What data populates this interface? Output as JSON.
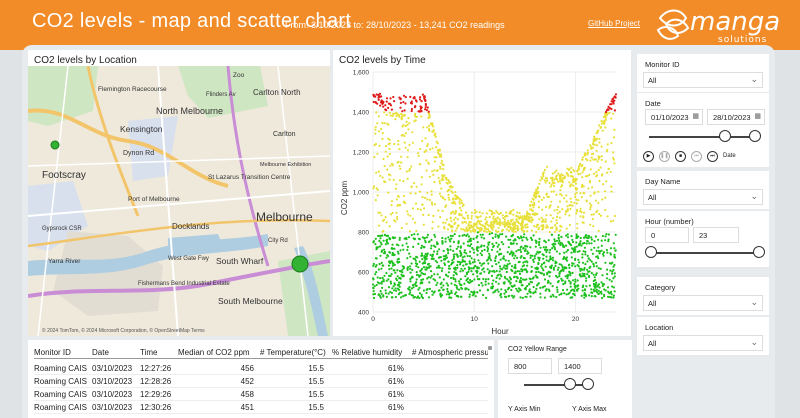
{
  "header": {
    "title": "CO2 levels - map and scatter chart",
    "subtitle": "From: 3/10/2023 to: 28/10/2023 - 13,241 CO2 readings",
    "github_link": "GitHub Project",
    "logo_text": "manga",
    "logo_subtext": "solutions",
    "bg_color": "#f28c28"
  },
  "map": {
    "title": "CO2 levels by Location",
    "labels": [
      "Flemington Racecourse",
      "North Melbourne",
      "Carlton North",
      "Kensington",
      "Zoo",
      "Footscray",
      "Dynon Rd",
      "Port of Melbourne",
      "St Lazarus Transition Centre",
      "Melbourne",
      "Docklands",
      "Gypsrock CSR",
      "Yarra River",
      "West Gate Fwy",
      "South Wharf",
      "Fishermans Bend Industrial Estate",
      "South Melbourne",
      "Carlton",
      "Flinders Av",
      "City Rd",
      "Melbourne Exhibition"
    ],
    "copyright": "© 2024 TomTom, © 2024 Microsoft Corporation, © OpenStreetMap  Terms",
    "markers": [
      {
        "lat": -37.799,
        "lon": 144.91,
        "color": "#33b233"
      },
      {
        "lat": -37.833,
        "lon": 144.962,
        "color": "#33b233"
      }
    ]
  },
  "scatter": {
    "title": "CO2 levels by Time",
    "ylabel": "CO2 ppm",
    "xlabel": "Hour"
  },
  "chart_data": {
    "type": "scatter",
    "title": "CO2 levels by Time",
    "xlabel": "Hour",
    "ylabel": "CO2 ppm",
    "xlim": [
      0,
      24
    ],
    "ylim": [
      400,
      1600
    ],
    "x_ticks": [
      0,
      10,
      20
    ],
    "y_ticks": [
      400,
      600,
      800,
      1000,
      1200,
      1400,
      1600
    ],
    "grid": true,
    "color_bands": [
      {
        "min": 400,
        "max": 800,
        "color": "#1ec01e"
      },
      {
        "min": 800,
        "max": 1400,
        "color": "#e8e03a"
      },
      {
        "min": 1400,
        "max": 1600,
        "color": "#e01a1a"
      }
    ]
  },
  "table": {
    "columns": [
      "Monitor ID",
      "Date",
      "Time",
      "Median of CO2 ppm",
      "# Temperature(°C)",
      "% Relative humidity",
      "# Atmospheric pressur"
    ],
    "rows": [
      [
        "Roaming CAIS",
        "03/10/2023",
        "12:27:26",
        "456",
        "15.5",
        "61%",
        ""
      ],
      [
        "Roaming CAIS",
        "03/10/2023",
        "12:28:26",
        "452",
        "15.5",
        "61%",
        ""
      ],
      [
        "Roaming CAIS",
        "03/10/2023",
        "12:29:26",
        "458",
        "15.5",
        "61%",
        ""
      ],
      [
        "Roaming CAIS",
        "03/10/2023",
        "12:30:26",
        "451",
        "15.5",
        "61%",
        ""
      ]
    ]
  },
  "yellow_range": {
    "title": "CO2 Yellow Range",
    "min": "800",
    "max": "1400",
    "y_axis_min_label": "Y Axis Min",
    "y_axis_max_label": "Y Axis Max"
  },
  "slicers": {
    "monitor": {
      "label": "Monitor ID",
      "value": "All"
    },
    "date": {
      "label": "Date",
      "from": "01/10/2023",
      "to": "28/10/2023",
      "date_label": "Date"
    },
    "day": {
      "label": "Day Name",
      "value": "All"
    },
    "hour": {
      "label": "Hour (number)",
      "from": "0",
      "to": "23"
    },
    "category": {
      "label": "Category",
      "value": "All"
    },
    "location": {
      "label": "Location",
      "value": "All"
    }
  },
  "icons": {
    "play": "▶",
    "pause": "❚❚",
    "stop": "■",
    "prev": "⏮",
    "next": "⏭",
    "chevron": "⌄",
    "calendar": "▦"
  }
}
